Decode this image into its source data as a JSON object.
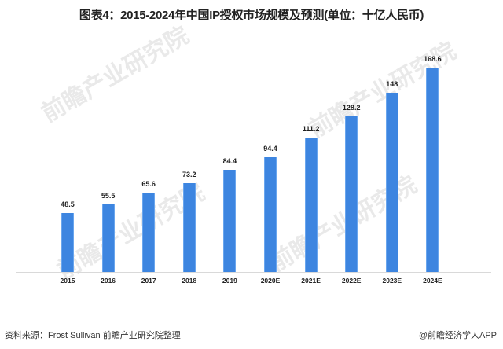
{
  "title": "图表4：2015-2024年中国IP授权市场规模及预测(单位：十亿人民币)",
  "source": "资料来源：Frost Sullivan 前瞻产业研究院整理",
  "credit": "@前瞻经济学人APP",
  "watermark": "前瞻产业研究院",
  "colors": {
    "bar": "#3d85e0",
    "axis": "#d9d9d9",
    "text": "#222222"
  },
  "chart_data": {
    "type": "bar",
    "title": "图表4：2015-2024年中国IP授权市场规模及预测(单位：十亿人民币)",
    "xlabel": "",
    "ylabel": "十亿人民币",
    "categories": [
      "2015",
      "2016",
      "2017",
      "2018",
      "2019",
      "2020E",
      "2021E",
      "2022E",
      "2023E",
      "2024E"
    ],
    "values": [
      48.5,
      55.5,
      65.6,
      73.2,
      84.4,
      94.4,
      111.2,
      128.2,
      148,
      168.6
    ],
    "value_labels": [
      "48.5",
      "55.5",
      "65.6",
      "73.2",
      "84.4",
      "94.4",
      "111.2",
      "128.2",
      "148",
      "168.6"
    ],
    "ylim": [
      0,
      180
    ],
    "grid": false,
    "legend": "none",
    "data_labels": true
  }
}
